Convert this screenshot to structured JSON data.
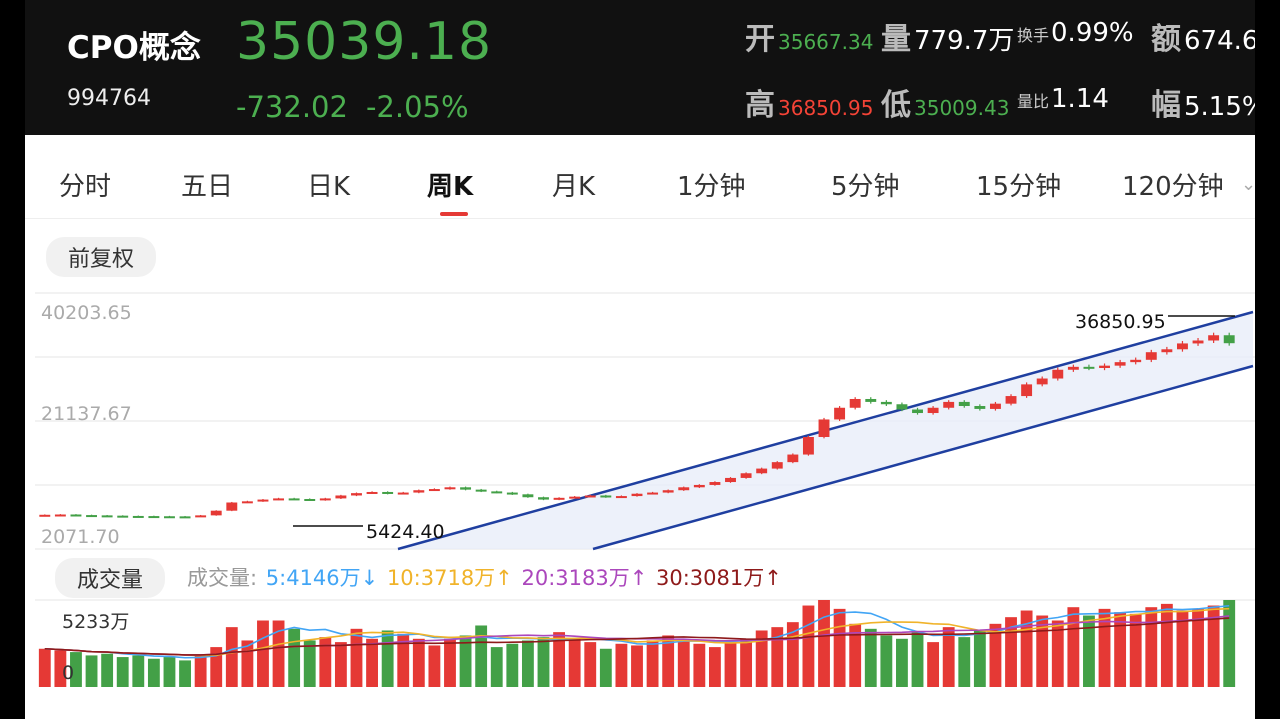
{
  "header": {
    "name": "CPO概念",
    "code": "994764",
    "price": "35039.18",
    "change": "-732.02",
    "change_pct": "-2.05%",
    "open_label": "开",
    "open": "35667.34",
    "volume_label": "量",
    "volume": "779.7万",
    "turnover_label": "换手",
    "turnover": "0.99%",
    "amount_label": "额",
    "amount": "674.6",
    "high_label": "高",
    "high": "36850.95",
    "low_label": "低",
    "low": "35009.43",
    "vol_ratio_label": "量比",
    "vol_ratio": "1.14",
    "amp_label": "幅",
    "amp": "5.15%"
  },
  "tabs": [
    "分时",
    "五日",
    "日K",
    "周K",
    "月K",
    "1分钟",
    "5分钟",
    "15分钟",
    "120分钟"
  ],
  "active_tab": "周K",
  "adjust_label": "前复权",
  "price_axis": [
    "40203.65",
    "21137.67",
    "2071.70"
  ],
  "annotations": {
    "max": "36850.95",
    "min": "5424.40"
  },
  "volume": {
    "title": "成交量",
    "legend_prefix": "成交量:",
    "ma5": "5:4146万↓",
    "ma10": "10:3718万↑",
    "ma20": "20:3183万↑",
    "ma30": "30:3081万↑",
    "axis_top": "5233万",
    "axis_bottom": "0"
  },
  "colors": {
    "up": "#e53935",
    "down": "#43a047",
    "channel": "#1f3fa0",
    "ma5": "#42a5f5",
    "ma10": "#f0b32a",
    "ma20": "#ab47bc",
    "ma30": "#8e1a1a"
  },
  "chart_data": {
    "type": "candlestick",
    "series_close": [
      5700,
      5750,
      5650,
      5600,
      5550,
      5500,
      5480,
      5450,
      5430,
      5424,
      5600,
      6400,
      7800,
      8000,
      8300,
      8500,
      8400,
      8200,
      8500,
      9000,
      9400,
      9600,
      9300,
      9500,
      9900,
      10100,
      10400,
      10000,
      9700,
      9500,
      9200,
      8700,
      8300,
      8600,
      8800,
      9000,
      8700,
      8900,
      9300,
      9500,
      9900,
      10400,
      10800,
      11300,
      12000,
      12800,
      13600,
      14700,
      16000,
      19000,
      22000,
      24000,
      25500,
      25000,
      24600,
      23700,
      23100,
      24000,
      25000,
      24300,
      23800,
      24700,
      26000,
      28000,
      29000,
      30500,
      31000,
      30800,
      31200,
      31800,
      32200,
      33500,
      34000,
      35000,
      35500,
      36400,
      35039
    ],
    "volume_wan": [
      2300,
      2200,
      2100,
      1900,
      2000,
      1800,
      1900,
      1700,
      1800,
      1600,
      1900,
      2400,
      3600,
      2800,
      4000,
      4000,
      3500,
      2800,
      3000,
      2700,
      3500,
      2900,
      3400,
      3200,
      2900,
      2500,
      2900,
      3100,
      3700,
      2400,
      2600,
      2800,
      3000,
      3300,
      2900,
      2700,
      2300,
      2600,
      2500,
      2800,
      3100,
      2800,
      2600,
      2400,
      2700,
      2900,
      3400,
      3600,
      3900,
      4900,
      5233,
      4700,
      3800,
      3500,
      3100,
      2900,
      3300,
      2700,
      3600,
      3000,
      3400,
      3800,
      4200,
      4600,
      4300,
      4000,
      4800,
      4300,
      4700,
      4500,
      4400,
      4800,
      5000,
      4600,
      4700,
      4900,
      5233
    ],
    "price_range": [
      2071.7,
      40203.65
    ]
  }
}
